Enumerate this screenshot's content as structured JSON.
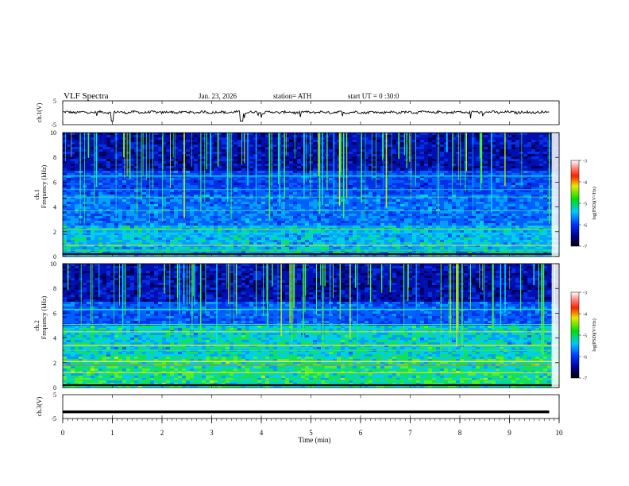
{
  "header": {
    "title": "VLF Spectra",
    "date": "Jan. 23, 2026",
    "station": "station= ATH",
    "start": "start UT = 0 :30:0"
  },
  "chart_data": [
    {
      "type": "line",
      "name": "ch1-waveform",
      "ylabel": "ch.1(V)",
      "ylim": [
        -5,
        5
      ],
      "yticks": [
        "5",
        "-5"
      ],
      "baseline": 0.2
    },
    {
      "type": "heatmap",
      "name": "ch1-spectrogram",
      "ylabel_ch": "ch.1",
      "ylabel": "Frequency (kHz)",
      "ylim": [
        0,
        10
      ],
      "yticks": [
        "0",
        "2",
        "4",
        "6",
        "8",
        "10"
      ],
      "colorbar": {
        "label": "log(PSD)(V²/Hz)",
        "ticks": [
          "-3",
          "-4",
          "-5",
          "-6",
          "-7"
        ],
        "range": [
          -7,
          -3
        ]
      }
    },
    {
      "type": "heatmap",
      "name": "ch2-spectrogram",
      "ylabel_ch": "ch.2",
      "ylabel": "Frequency (kHz)",
      "ylim": [
        0,
        10
      ],
      "yticks": [
        "0",
        "2",
        "4",
        "6",
        "8",
        "10"
      ],
      "colorbar": {
        "label": "log(PSD)(V²/Hz)",
        "ticks": [
          "-3",
          "-4",
          "-5",
          "-6",
          "-7"
        ],
        "range": [
          -7,
          -3
        ]
      }
    },
    {
      "type": "line",
      "name": "ch3-waveform",
      "ylabel": "ch.3(V)",
      "ylim": [
        -5,
        5
      ],
      "yticks": [
        "5",
        "-5"
      ],
      "baseline": -2.2
    }
  ],
  "xaxis": {
    "label": "Time (min)",
    "ticks": [
      "0",
      "1",
      "2",
      "3",
      "4",
      "5",
      "6",
      "7",
      "8",
      "9",
      "10"
    ],
    "range": [
      0,
      10
    ]
  }
}
